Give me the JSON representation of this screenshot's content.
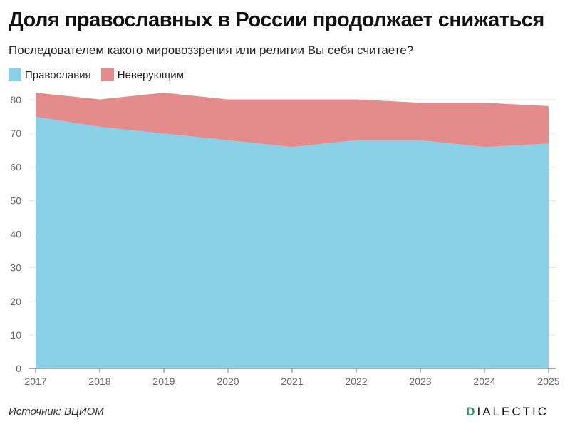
{
  "chart_data": {
    "type": "area",
    "stacked": true,
    "title": "Доля православных в России продолжает снижаться",
    "subtitle": "Последователем какого мировоззрения или религии Вы себя считаете?",
    "x": [
      "2017",
      "2018",
      "2019",
      "2020",
      "2021",
      "2022",
      "2023",
      "2024",
      "2025"
    ],
    "series": [
      {
        "name": "Православия",
        "color": "#8ad0e6",
        "values": [
          75,
          72,
          70,
          68,
          66,
          68,
          68,
          66,
          67
        ]
      },
      {
        "name": "Неверующим",
        "color": "#e48c8c",
        "values": [
          7,
          8,
          12,
          12,
          14,
          12,
          11,
          13,
          11
        ]
      }
    ],
    "ylim": [
      0,
      80
    ],
    "yticks": [
      0,
      10,
      20,
      30,
      40,
      50,
      60,
      70,
      80
    ],
    "grid": true,
    "legend_position": "top-left"
  },
  "footer": {
    "source": "Источник: ВЦИОМ",
    "logo_first": "D",
    "logo_rest": "IALECTIC"
  }
}
